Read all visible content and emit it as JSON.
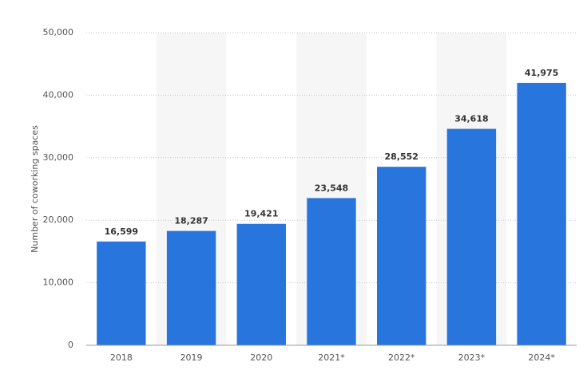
{
  "chart_data": {
    "type": "bar",
    "y_label": "Number of coworking spaces",
    "categories": [
      "2018",
      "2019",
      "2020",
      "2021*",
      "2022*",
      "2023*",
      "2024*"
    ],
    "values": [
      16599,
      18287,
      19421,
      23548,
      28552,
      34618,
      41975
    ],
    "value_labels": [
      "16,599",
      "18,287",
      "19,421",
      "23,548",
      "28,552",
      "34,618",
      "41,975"
    ],
    "color": "#2876dd",
    "ylim": [
      0,
      50000
    ],
    "yticks": [
      0,
      {
        "value": 10000,
        "label": "10,000"
      },
      {
        "value": 20000,
        "label": "20,000"
      },
      {
        "value": 30000,
        "label": "30,000"
      },
      {
        "value": 40000,
        "label": "40,000"
      },
      {
        "value": 50000,
        "label": "50,000"
      }
    ],
    "grid": true
  }
}
